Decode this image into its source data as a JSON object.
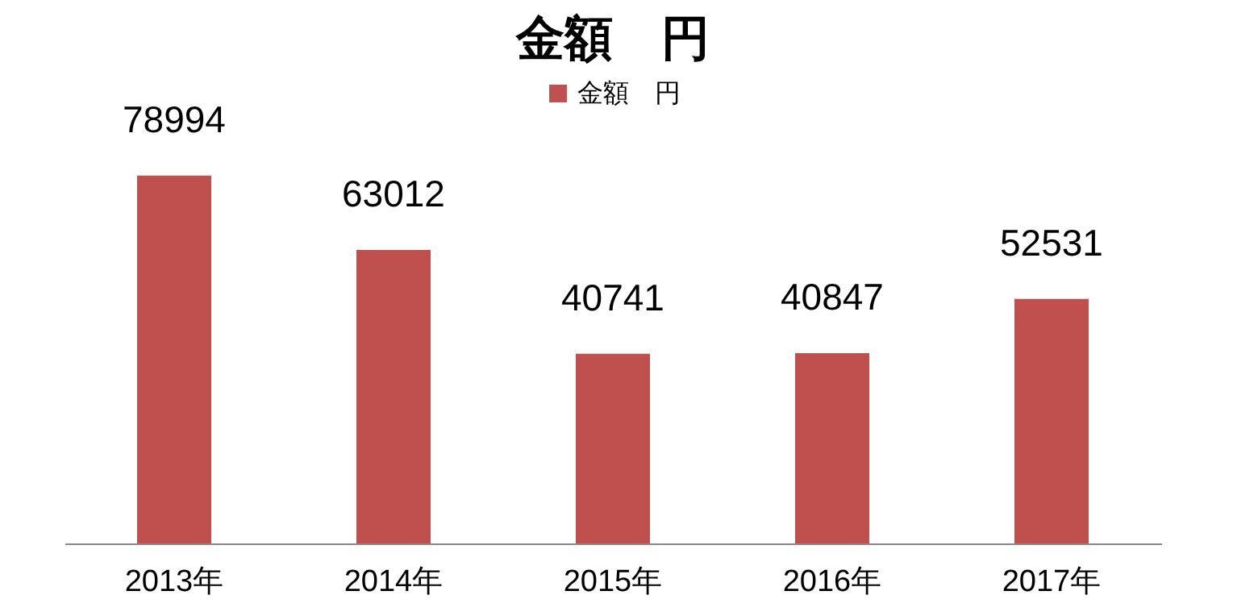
{
  "chart_data": {
    "type": "bar",
    "title": "金額　円",
    "categories": [
      "2013年",
      "2014年",
      "2015年",
      "2016年",
      "2017年"
    ],
    "series": [
      {
        "name": "金額　円",
        "color": "#c0504d",
        "values": [
          78994,
          63012,
          40741,
          40847,
          52531
        ]
      }
    ],
    "data_labels": true,
    "legend": "top",
    "tick_labels": "x"
  }
}
